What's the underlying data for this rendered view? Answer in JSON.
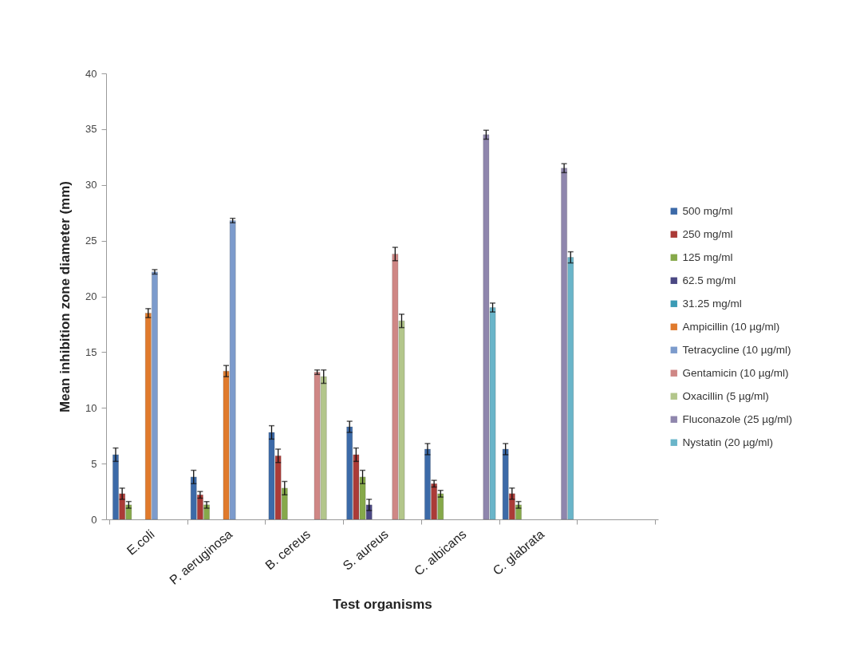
{
  "chart_data": {
    "type": "bar",
    "xlabel": "Test organisms",
    "ylabel": "Mean inhibition zone diameter (mm)",
    "categories": [
      "E.coli",
      "P. aeruginosa",
      "B. cereus",
      "S. aureus",
      "C. albicans",
      "C. glabrata",
      null
    ],
    "ylim": [
      0,
      40
    ],
    "yticks": [
      0,
      5,
      10,
      15,
      20,
      25,
      30,
      35,
      40
    ],
    "grid": false,
    "legend": "right",
    "series": [
      {
        "name": "500 mg/ml",
        "color": "#3c6aa8",
        "values": [
          5.8,
          3.8,
          7.8,
          8.3,
          6.3,
          6.3,
          null
        ],
        "errors": [
          0.6,
          0.6,
          0.6,
          0.5,
          0.5,
          0.5,
          null
        ]
      },
      {
        "name": "250 mg/ml",
        "color": "#ab3b37",
        "values": [
          2.3,
          2.2,
          5.7,
          5.8,
          3.2,
          2.3,
          null
        ],
        "errors": [
          0.5,
          0.3,
          0.6,
          0.6,
          0.3,
          0.5,
          null
        ]
      },
      {
        "name": "125 mg/ml",
        "color": "#86a94a",
        "values": [
          1.3,
          1.3,
          2.8,
          3.8,
          2.3,
          1.3,
          null
        ],
        "errors": [
          0.3,
          0.3,
          0.6,
          0.6,
          0.3,
          0.3,
          null
        ]
      },
      {
        "name": "62.5 mg/ml",
        "color": "#4b4883",
        "values": [
          null,
          null,
          null,
          1.3,
          null,
          null,
          null
        ],
        "errors": [
          null,
          null,
          null,
          0.5,
          null,
          null,
          null
        ]
      },
      {
        "name": "31.25 mg/ml",
        "color": "#3b9bb5",
        "values": [
          null,
          null,
          null,
          null,
          null,
          null,
          null
        ]
      },
      {
        "name": "Ampicillin  (10 µg/ml)",
        "color": "#e07a2c",
        "values": [
          18.5,
          13.3,
          null,
          null,
          null,
          null,
          null
        ],
        "errors": [
          0.4,
          0.5,
          null,
          null,
          null,
          null,
          null
        ]
      },
      {
        "name": "Tetracycline (10 µg/ml)",
        "color": "#7c9bcc",
        "values": [
          22.2,
          26.8,
          null,
          null,
          null,
          null,
          null
        ],
        "errors": [
          0.2,
          0.2,
          null,
          null,
          null,
          null,
          null
        ]
      },
      {
        "name": "Gentamicin (10 µg/ml)",
        "color": "#cf8785",
        "values": [
          null,
          null,
          13.2,
          23.8,
          null,
          null,
          null
        ],
        "errors": [
          null,
          null,
          0.2,
          0.6,
          null,
          null,
          null
        ]
      },
      {
        "name": "Oxacillin (5 µg/ml)",
        "color": "#b3c68b",
        "values": [
          null,
          null,
          12.8,
          17.8,
          null,
          null,
          null
        ],
        "errors": [
          null,
          null,
          0.6,
          0.6,
          null,
          null,
          null
        ]
      },
      {
        "name": "Fluconazole (25 µg/ml)",
        "color": "#8f86ad",
        "values": [
          null,
          null,
          null,
          null,
          34.5,
          31.5,
          null
        ],
        "errors": [
          null,
          null,
          null,
          null,
          0.4,
          0.4,
          null
        ]
      },
      {
        "name": "Nystatin (20 µg/ml)",
        "color": "#6ab5c9",
        "values": [
          null,
          null,
          null,
          null,
          19.0,
          23.5,
          null
        ],
        "errors": [
          null,
          null,
          null,
          null,
          0.4,
          0.5,
          null
        ]
      }
    ]
  }
}
